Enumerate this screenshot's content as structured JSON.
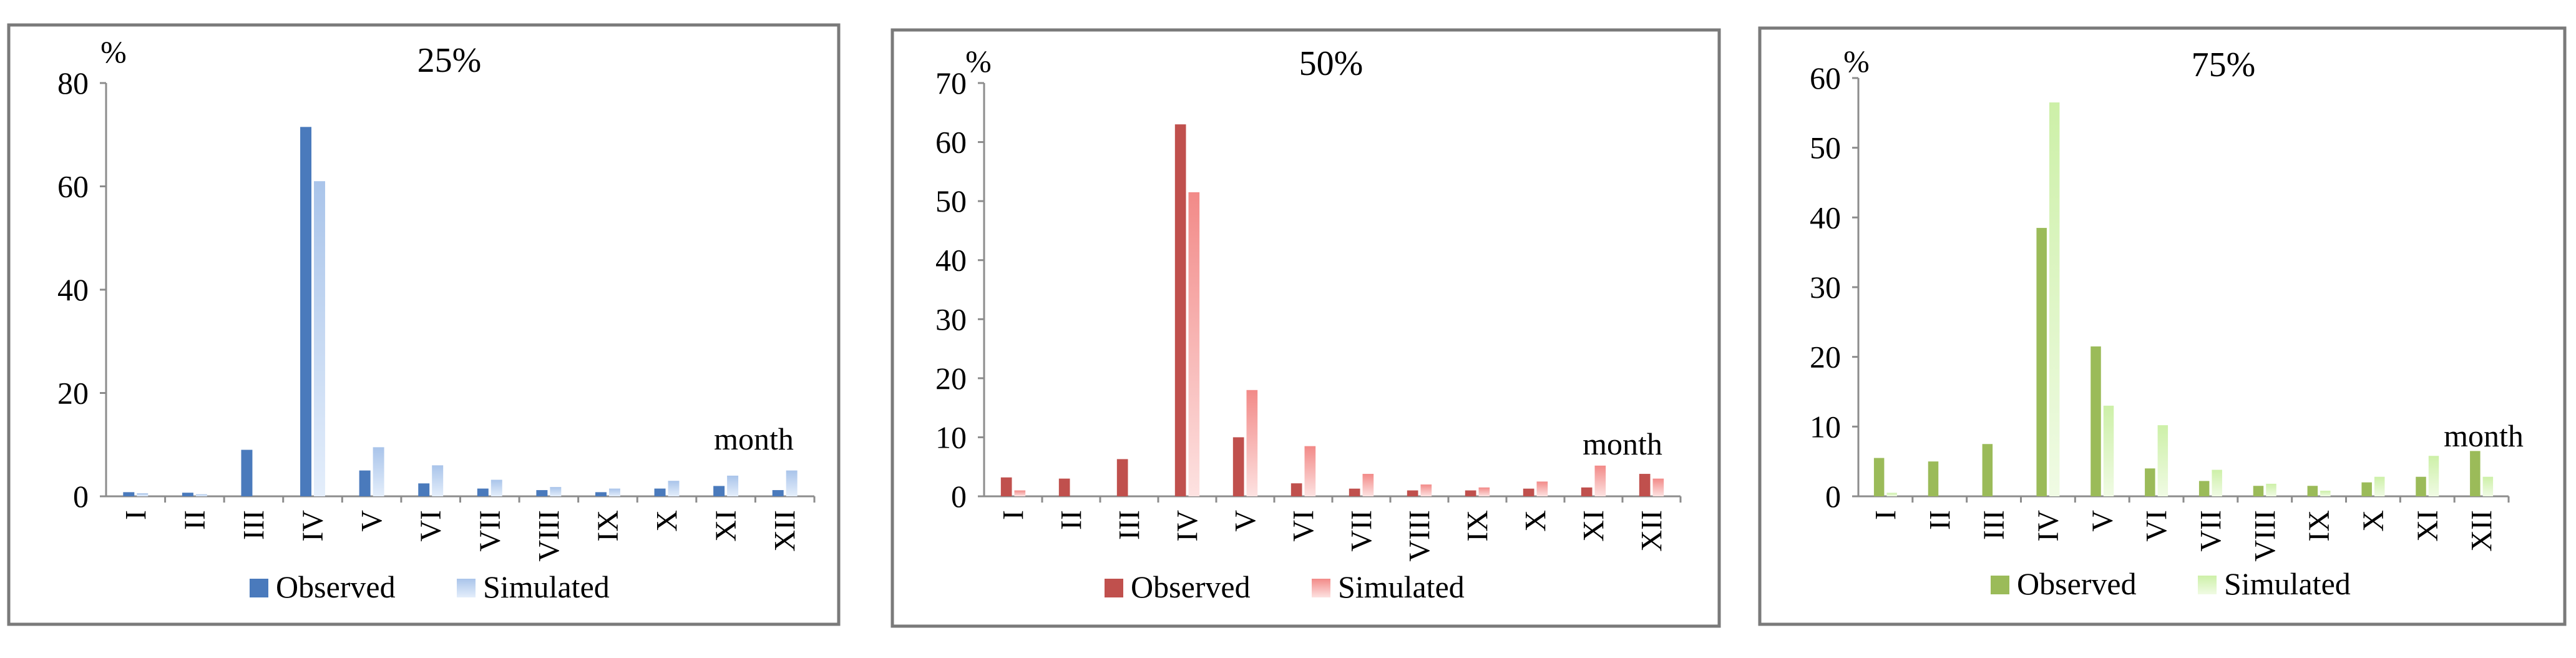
{
  "chart_data": [
    {
      "type": "bar",
      "title": "25%",
      "ylabel": "%",
      "xlabel": "month",
      "ylim": [
        0,
        80
      ],
      "yticks": [
        0,
        20,
        40,
        60,
        80
      ],
      "categories": [
        "I",
        "II",
        "III",
        "IV",
        "V",
        "VI",
        "VII",
        "VIII",
        "IX",
        "X",
        "XI",
        "XII"
      ],
      "series": [
        {
          "name": "Observed",
          "values": [
            0.8,
            0.7,
            9.0,
            71.5,
            5.0,
            2.5,
            1.5,
            1.2,
            0.8,
            1.5,
            2.0,
            1.2
          ]
        },
        {
          "name": "Simulated",
          "values": [
            0.6,
            0.4,
            0,
            61.0,
            9.5,
            6.0,
            3.2,
            1.8,
            1.5,
            3.0,
            4.0,
            5.0
          ]
        }
      ],
      "colors": {
        "Observed": "#4a7abc",
        "Simulated": "#a9c4ea",
        "Simulated_light": "#e4eefb"
      },
      "legend": "bottom"
    },
    {
      "type": "bar",
      "title": "50%",
      "ylabel": "%",
      "xlabel": "month",
      "ylim": [
        0,
        70
      ],
      "yticks": [
        0,
        10,
        20,
        30,
        40,
        50,
        60,
        70
      ],
      "categories": [
        "I",
        "II",
        "III",
        "IV",
        "V",
        "VI",
        "VII",
        "VIII",
        "IX",
        "X",
        "XI",
        "XII"
      ],
      "series": [
        {
          "name": "Observed",
          "values": [
            3.2,
            3.0,
            6.3,
            63.0,
            10.0,
            2.2,
            1.3,
            1.0,
            1.0,
            1.3,
            1.5,
            3.8
          ]
        },
        {
          "name": "Simulated",
          "values": [
            1.0,
            0,
            0,
            51.5,
            18.0,
            8.5,
            3.8,
            2.0,
            1.5,
            2.5,
            5.2,
            3.0
          ]
        }
      ],
      "colors": {
        "Observed": "#c0504d",
        "Simulated": "#f28a88",
        "Simulated_light": "#fde2e1"
      },
      "legend": "bottom"
    },
    {
      "type": "bar",
      "title": "75%",
      "ylabel": "%",
      "xlabel": "month",
      "ylim": [
        0,
        60
      ],
      "yticks": [
        0,
        10,
        20,
        30,
        40,
        50,
        60
      ],
      "categories": [
        "I",
        "II",
        "III",
        "IV",
        "V",
        "VI",
        "VII",
        "VIII",
        "IX",
        "X",
        "XI",
        "XII"
      ],
      "series": [
        {
          "name": "Observed",
          "values": [
            5.5,
            5.0,
            7.5,
            38.5,
            21.5,
            4.0,
            2.2,
            1.5,
            1.5,
            2.0,
            2.8,
            6.5
          ]
        },
        {
          "name": "Simulated",
          "values": [
            0.5,
            0,
            0,
            56.5,
            13.0,
            10.2,
            3.8,
            1.8,
            0.8,
            2.8,
            5.8,
            2.8
          ]
        }
      ],
      "colors": {
        "Observed": "#9bbb59",
        "Simulated": "#cdf0a8",
        "Simulated_light": "#f0fbe4"
      },
      "legend": "bottom"
    }
  ]
}
